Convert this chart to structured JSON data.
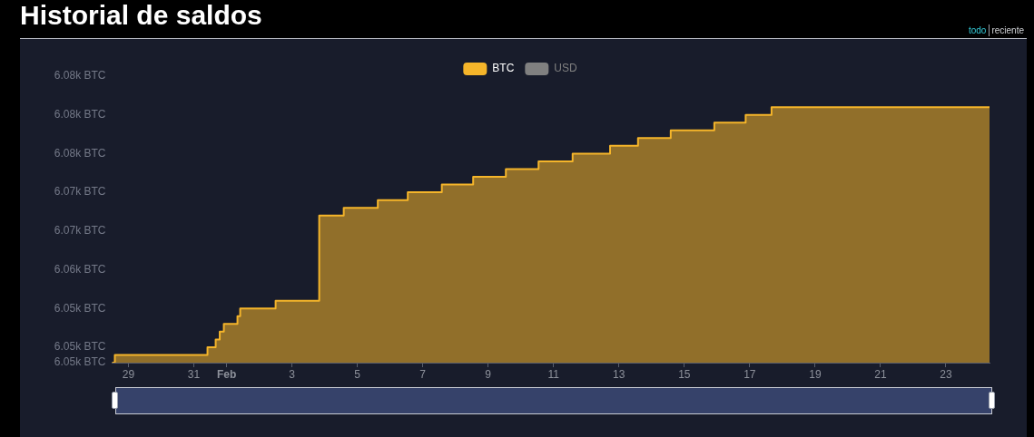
{
  "chart_data": {
    "type": "step",
    "title": "Historial de saldos",
    "x": [
      "--01-28T12:00",
      "--01-28T14:00",
      "--01-31T10:00",
      "--01-31T16:00",
      "--01-31T19:00",
      "--01-31T22:00",
      "--02-01T08:00",
      "--02-01T10:00",
      "--02-02T12:00",
      "--02-03T20:00",
      "--02-04T14:00",
      "--02-05T15:00",
      "--02-06T13:00",
      "--02-07T14:00",
      "--02-08T13:00",
      "--02-09T13:00",
      "--02-10T13:00",
      "--02-11T14:00",
      "--02-12T17:30",
      "--02-13T14:00",
      "--02-14T14:00",
      "--02-15T22:00",
      "--02-16T21:00",
      "--02-17T16:00",
      "--02-24T08:00"
    ],
    "series": [
      {
        "name": "BTC",
        "color": "#f5b52a",
        "values": [
          6048,
          6049,
          6050,
          6051,
          6052,
          6053,
          6054,
          6055,
          6056,
          6067,
          6068,
          6069,
          6070,
          6071,
          6072,
          6073,
          6074,
          6075,
          6076,
          6077,
          6078,
          6079,
          6080,
          6081,
          6081
        ]
      },
      {
        "name": "USD",
        "color": "#808080",
        "values": [
          null,
          null,
          null,
          null,
          null,
          null,
          null,
          null,
          null,
          null,
          null,
          null,
          null,
          null,
          null,
          null,
          null,
          null,
          null,
          null,
          null,
          null,
          null,
          null,
          null
        ]
      }
    ],
    "xlim": [
      "--01-28T12:00",
      "--02-24T08:00"
    ],
    "xticks": [
      {
        "value": "--01-29",
        "label": "29"
      },
      {
        "value": "--01-31",
        "label": "31"
      },
      {
        "value": "--02-01",
        "label": "Feb"
      },
      {
        "value": "--02-03",
        "label": "3"
      },
      {
        "value": "--02-05",
        "label": "5"
      },
      {
        "value": "--02-07",
        "label": "7"
      },
      {
        "value": "--02-09",
        "label": "9"
      },
      {
        "value": "--02-11",
        "label": "11"
      },
      {
        "value": "--02-13",
        "label": "13"
      },
      {
        "value": "--02-15",
        "label": "15"
      },
      {
        "value": "--02-17",
        "label": "17"
      },
      {
        "value": "--02-19",
        "label": "19"
      },
      {
        "value": "--02-21",
        "label": "21"
      },
      {
        "value": "--02-23",
        "label": "23"
      }
    ],
    "ylim": [
      6048,
      6085
    ],
    "yticks": [
      {
        "value": 6048,
        "label": "6.05k BTC"
      },
      {
        "value": 6050,
        "label": "6.05k BTC"
      },
      {
        "value": 6055,
        "label": "6.05k BTC"
      },
      {
        "value": 6060,
        "label": "6.06k BTC"
      },
      {
        "value": 6065,
        "label": "6.07k BTC"
      },
      {
        "value": 6070,
        "label": "6.07k BTC"
      },
      {
        "value": 6075,
        "label": "6.08k BTC"
      },
      {
        "value": 6080,
        "label": "6.08k BTC"
      },
      {
        "value": 6085,
        "label": "6.08k BTC"
      }
    ],
    "legend": "top",
    "marker": "none",
    "grid": false,
    "annotations": [
      "todo",
      "reciente"
    ]
  }
}
